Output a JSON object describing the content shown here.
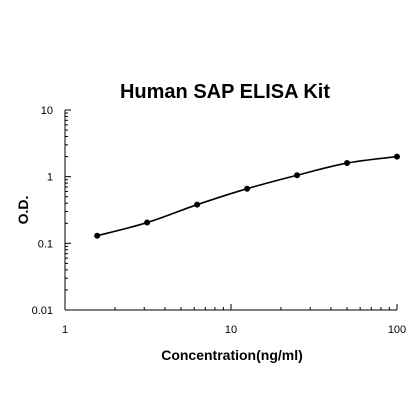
{
  "chart_data": {
    "type": "scatter",
    "title": "Human SAP ELISA Kit",
    "xlabel": "Concentration(ng/ml)",
    "ylabel": "O.D.",
    "x_scale": "log",
    "y_scale": "log",
    "xlim": [
      1,
      100
    ],
    "ylim": [
      0.01,
      10
    ],
    "x_ticks": [
      "1",
      "10",
      "100"
    ],
    "y_ticks": [
      "0.01",
      "0.1",
      "1",
      "10"
    ],
    "grid": false,
    "series": [
      {
        "x": [
          1.5625,
          3.125,
          6.25,
          12.5,
          25,
          50,
          100
        ],
        "y": [
          0.13,
          0.205,
          0.38,
          0.66,
          1.05,
          1.6,
          2.0
        ]
      }
    ],
    "colors": {
      "line": "#000000",
      "points": "#000000",
      "axis": "#000000"
    }
  }
}
